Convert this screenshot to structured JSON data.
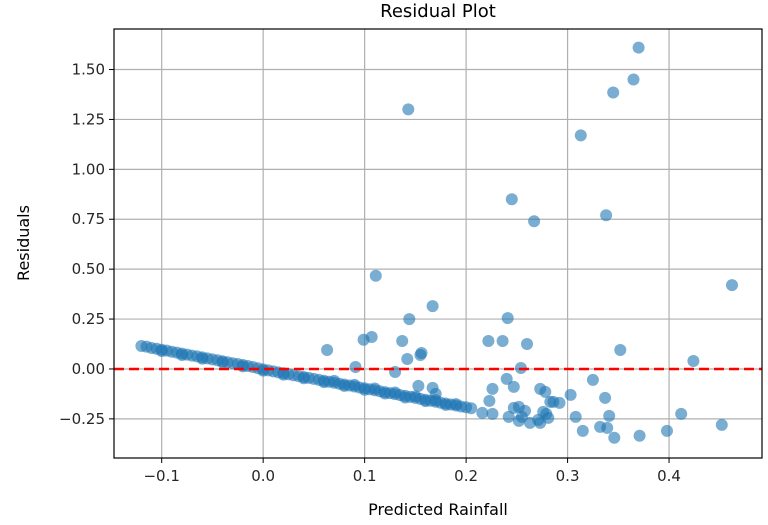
{
  "chart_data": {
    "type": "scatter",
    "title": "Residual Plot",
    "xlabel": "Predicted Rainfall",
    "ylabel": "Residuals",
    "xlim": [
      -0.147,
      0.4916
    ],
    "ylim": [
      -0.446,
      1.703
    ],
    "grid": true,
    "x_ticks": [
      -0.1,
      0.0,
      0.1,
      0.2,
      0.3,
      0.4
    ],
    "x_tick_labels": [
      "−0.1",
      "0.0",
      "0.1",
      "0.2",
      "0.3",
      "0.4"
    ],
    "y_ticks": [
      -0.25,
      0.0,
      0.25,
      0.5,
      0.75,
      1.0,
      1.25,
      1.5
    ],
    "y_tick_labels": [
      "−0.25",
      "0.00",
      "0.25",
      "0.50",
      "0.75",
      "1.00",
      "1.25",
      "1.50"
    ],
    "reference_line": {
      "y": 0,
      "style": "dashed",
      "color": "#ff0000"
    },
    "point_color": "#1f77b4",
    "series": [
      {
        "name": "residuals",
        "points": [
          [
            -0.12,
            0.115
          ],
          [
            -0.115,
            0.112
          ],
          [
            -0.11,
            0.105
          ],
          [
            -0.105,
            0.101
          ],
          [
            -0.1,
            0.096
          ],
          [
            -0.095,
            0.092
          ],
          [
            -0.09,
            0.086
          ],
          [
            -0.085,
            0.082
          ],
          [
            -0.08,
            0.077
          ],
          [
            -0.075,
            0.072
          ],
          [
            -0.07,
            0.067
          ],
          [
            -0.065,
            0.063
          ],
          [
            -0.06,
            0.058
          ],
          [
            -0.055,
            0.053
          ],
          [
            -0.05,
            0.048
          ],
          [
            -0.045,
            0.044
          ],
          [
            -0.04,
            0.039
          ],
          [
            -0.035,
            0.034
          ],
          [
            -0.03,
            0.029
          ],
          [
            -0.025,
            0.025
          ],
          [
            -0.02,
            0.02
          ],
          [
            -0.015,
            0.015
          ],
          [
            -0.01,
            0.01
          ],
          [
            -0.005,
            0.004
          ],
          [
            0.0,
            -0.002
          ],
          [
            0.005,
            -0.007
          ],
          [
            0.01,
            -0.012
          ],
          [
            0.015,
            -0.017
          ],
          [
            0.02,
            -0.021
          ],
          [
            0.025,
            -0.026
          ],
          [
            0.03,
            -0.031
          ],
          [
            0.035,
            -0.036
          ],
          [
            0.04,
            -0.04
          ],
          [
            0.045,
            -0.045
          ],
          [
            0.05,
            -0.05
          ],
          [
            0.055,
            -0.055
          ],
          [
            0.06,
            -0.059
          ],
          [
            0.065,
            -0.064
          ],
          [
            0.07,
            -0.069
          ],
          [
            0.075,
            -0.074
          ],
          [
            0.08,
            -0.078
          ],
          [
            0.085,
            -0.083
          ],
          [
            0.09,
            -0.088
          ],
          [
            0.095,
            -0.093
          ],
          [
            0.1,
            -0.097
          ],
          [
            0.105,
            -0.102
          ],
          [
            0.11,
            -0.107
          ],
          [
            0.115,
            -0.112
          ],
          [
            0.12,
            -0.116
          ],
          [
            0.125,
            -0.121
          ],
          [
            0.13,
            -0.126
          ],
          [
            0.135,
            -0.131
          ],
          [
            0.14,
            -0.135
          ],
          [
            0.145,
            -0.14
          ],
          [
            0.15,
            -0.145
          ],
          [
            0.155,
            -0.15
          ],
          [
            0.16,
            -0.154
          ],
          [
            0.165,
            -0.159
          ],
          [
            0.17,
            -0.164
          ],
          [
            0.175,
            -0.169
          ],
          [
            0.18,
            -0.173
          ],
          [
            0.185,
            -0.178
          ],
          [
            0.19,
            -0.183
          ],
          [
            0.195,
            -0.188
          ],
          [
            0.2,
            -0.192
          ],
          [
            0.205,
            -0.197
          ],
          [
            -0.1,
            0.09
          ],
          [
            -0.08,
            0.07
          ],
          [
            -0.06,
            0.052
          ],
          [
            -0.04,
            0.033
          ],
          [
            -0.02,
            0.013
          ],
          [
            0.0,
            -0.008
          ],
          [
            0.02,
            -0.028
          ],
          [
            0.04,
            -0.047
          ],
          [
            0.06,
            -0.066
          ],
          [
            0.08,
            -0.085
          ],
          [
            0.1,
            -0.104
          ],
          [
            0.12,
            -0.123
          ],
          [
            0.14,
            -0.143
          ],
          [
            0.16,
            -0.161
          ],
          [
            0.18,
            -0.18
          ],
          [
            0.07,
            -0.06
          ],
          [
            0.09,
            -0.08
          ],
          [
            0.11,
            -0.098
          ],
          [
            0.13,
            -0.118
          ],
          [
            0.15,
            -0.137
          ],
          [
            0.17,
            -0.156
          ],
          [
            0.19,
            -0.176
          ],
          [
            0.143,
            1.3
          ],
          [
            0.245,
            0.85
          ],
          [
            0.267,
            0.74
          ],
          [
            0.111,
            0.467
          ],
          [
            0.37,
            1.61
          ],
          [
            0.365,
            1.45
          ],
          [
            0.345,
            1.385
          ],
          [
            0.313,
            1.17
          ],
          [
            0.338,
            0.77
          ],
          [
            0.462,
            0.42
          ],
          [
            0.424,
            0.04
          ],
          [
            0.412,
            -0.225
          ],
          [
            0.452,
            -0.28
          ],
          [
            0.398,
            -0.31
          ],
          [
            0.371,
            -0.335
          ],
          [
            0.063,
            0.095
          ],
          [
            0.099,
            0.146
          ],
          [
            0.107,
            0.16
          ],
          [
            0.091,
            0.01
          ],
          [
            0.144,
            0.25
          ],
          [
            0.167,
            0.315
          ],
          [
            0.137,
            0.14
          ],
          [
            0.142,
            0.05
          ],
          [
            0.156,
            0.08
          ],
          [
            0.155,
            0.07
          ],
          [
            0.13,
            -0.015
          ],
          [
            0.241,
            0.255
          ],
          [
            0.222,
            0.14
          ],
          [
            0.236,
            0.14
          ],
          [
            0.26,
            0.125
          ],
          [
            0.352,
            0.095
          ],
          [
            0.254,
            0.005
          ],
          [
            0.24,
            -0.05
          ],
          [
            0.247,
            -0.09
          ],
          [
            0.226,
            -0.1
          ],
          [
            0.273,
            -0.1
          ],
          [
            0.278,
            -0.115
          ],
          [
            0.325,
            -0.055
          ],
          [
            0.303,
            -0.13
          ],
          [
            0.337,
            -0.145
          ],
          [
            0.283,
            -0.165
          ],
          [
            0.292,
            -0.17
          ],
          [
            0.223,
            -0.16
          ],
          [
            0.226,
            -0.225
          ],
          [
            0.247,
            -0.195
          ],
          [
            0.308,
            -0.24
          ],
          [
            0.341,
            -0.235
          ],
          [
            0.315,
            -0.31
          ],
          [
            0.332,
            -0.29
          ],
          [
            0.339,
            -0.295
          ],
          [
            0.346,
            -0.345
          ],
          [
            0.252,
            -0.26
          ],
          [
            0.271,
            -0.255
          ],
          [
            0.216,
            -0.22
          ],
          [
            0.242,
            -0.24
          ],
          [
            0.252,
            -0.19
          ],
          [
            0.258,
            -0.21
          ],
          [
            0.255,
            -0.24
          ],
          [
            0.263,
            -0.27
          ],
          [
            0.273,
            -0.27
          ],
          [
            0.279,
            -0.225
          ],
          [
            0.281,
            -0.245
          ],
          [
            0.276,
            -0.215
          ],
          [
            0.286,
            -0.165
          ],
          [
            0.153,
            -0.085
          ],
          [
            0.167,
            -0.095
          ],
          [
            0.17,
            -0.125
          ]
        ]
      }
    ]
  }
}
